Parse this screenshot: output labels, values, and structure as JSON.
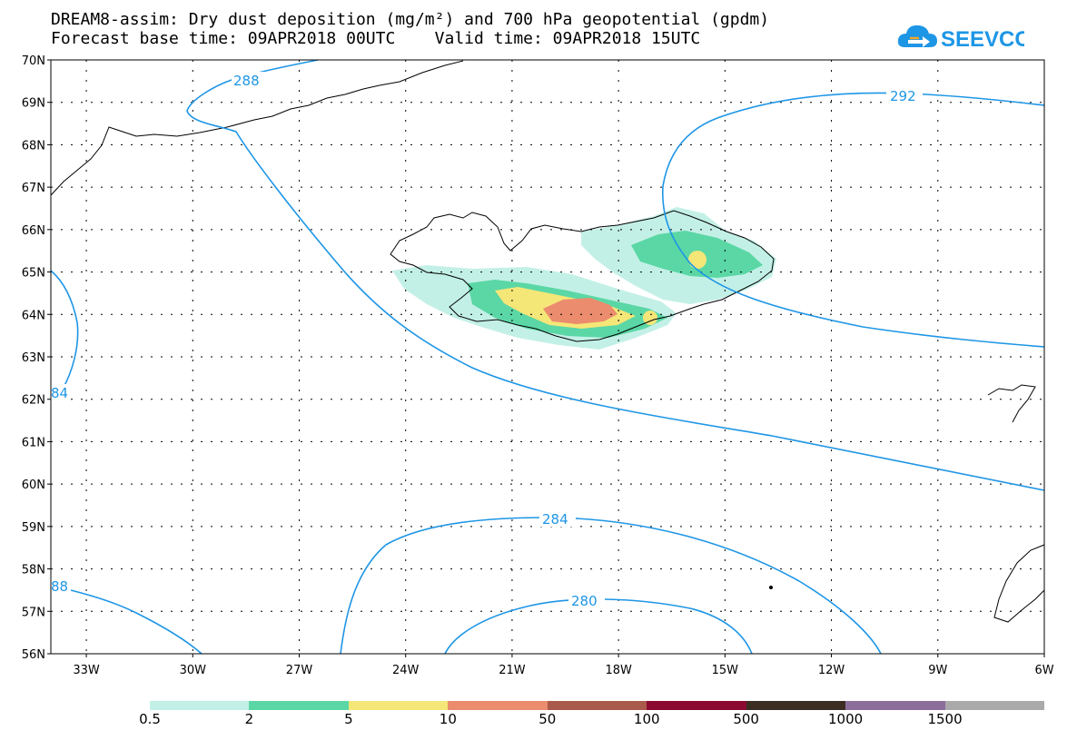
{
  "header": {
    "title_line1": "DREAM8-assim: Dry dust deposition (mg/m²) and 700 hPa geopotential (gpdm)",
    "title_line2": "Forecast base time: 09APR2018 00UTC    Valid time: 09APR2018 15UTC",
    "logo_text": "SEEVCCC",
    "logo_icon": "cloud-arrow-icon"
  },
  "map": {
    "lat_labels": [
      "70N",
      "69N",
      "68N",
      "67N",
      "66N",
      "65N",
      "64N",
      "63N",
      "62N",
      "61N",
      "60N",
      "59N",
      "58N",
      "57N",
      "56N"
    ],
    "lon_labels": [
      "33W",
      "30W",
      "27W",
      "24W",
      "21W",
      "18W",
      "15W",
      "12W",
      "9W",
      "6W"
    ],
    "extent": {
      "lon_min": -34,
      "lon_max": -6,
      "lat_min": 56,
      "lat_max": 70
    },
    "grid": "dotted",
    "contour_color": "#1e96e6",
    "contour_labels": [
      "288",
      "292",
      "84",
      "284",
      "280",
      "88"
    ]
  },
  "legend": {
    "colors": [
      "#c3f0e6",
      "#5ad7a5",
      "#f5e678",
      "#eb8c6e",
      "#aa5a4b",
      "#8c0a32",
      "#3c2d23",
      "#8c6e9b",
      "#aaaaaa"
    ],
    "labels": [
      "0.5",
      "2",
      "5",
      "10",
      "50",
      "100",
      "500",
      "1000",
      "1500"
    ]
  }
}
